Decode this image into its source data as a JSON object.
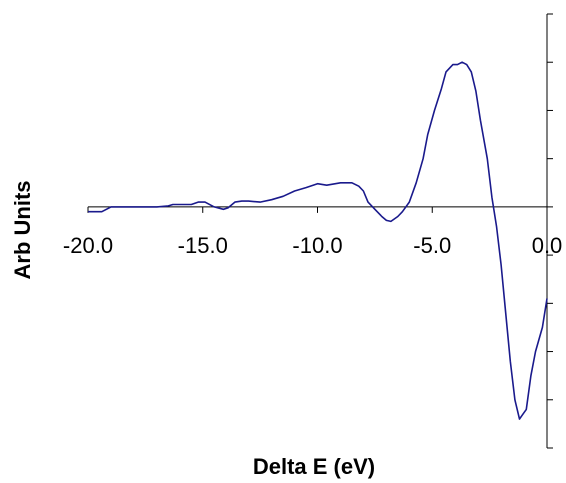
{
  "chart_data": {
    "type": "line",
    "title": "",
    "xlabel": "Delta E (eV)",
    "ylabel": "Arb Units",
    "xlim": [
      -20.0,
      0.0
    ],
    "ylim": [
      -5,
      4
    ],
    "x_ticks": [
      "-20.0",
      "-15.0",
      "-10.0",
      "-5.0",
      "0.0"
    ],
    "x_tick_values": [
      -20,
      -15,
      -10,
      -5,
      0
    ],
    "y_tick_values": [
      -5,
      -4,
      -3,
      -2,
      -1,
      0,
      1,
      2,
      3,
      4
    ],
    "grid": false,
    "legend": "none",
    "colors": {
      "line": "#1a1a8c",
      "axis": "#000000"
    },
    "series": [
      {
        "x": [
          -20.0,
          -19.4,
          -19.0,
          -18.8,
          -18.5,
          -18.0,
          -17.0,
          -16.5,
          -16.3,
          -16.0,
          -15.5,
          -15.2,
          -14.9,
          -14.5,
          -14.1,
          -13.9,
          -13.6,
          -13.3,
          -13.0,
          -12.5,
          -12.0,
          -11.5,
          -11.0,
          -10.5,
          -10.0,
          -9.6,
          -9.0,
          -8.5,
          -8.2,
          -8.0,
          -7.8,
          -7.5,
          -7.2,
          -7.0,
          -6.8,
          -6.5,
          -6.3,
          -6.0,
          -5.7,
          -5.4,
          -5.2,
          -4.9,
          -4.6,
          -4.4,
          -4.1,
          -3.9,
          -3.7,
          -3.5,
          -3.3,
          -3.1,
          -2.9,
          -2.6,
          -2.4,
          -2.2,
          -2.0,
          -1.8,
          -1.6,
          -1.4,
          -1.2,
          -1.05,
          -0.9,
          -0.7,
          -0.5,
          -0.2,
          0.0
        ],
        "y": [
          -0.1,
          -0.1,
          0.0,
          0.0,
          0.0,
          0.0,
          0.0,
          0.02,
          0.05,
          0.05,
          0.05,
          0.1,
          0.1,
          0.0,
          -0.05,
          -0.02,
          0.1,
          0.12,
          0.12,
          0.1,
          0.15,
          0.22,
          0.33,
          0.4,
          0.48,
          0.45,
          0.5,
          0.5,
          0.43,
          0.33,
          0.1,
          -0.05,
          -0.2,
          -0.28,
          -0.3,
          -0.2,
          -0.1,
          0.1,
          0.5,
          1.0,
          1.5,
          2.0,
          2.45,
          2.8,
          2.95,
          2.95,
          3.0,
          2.95,
          2.8,
          2.4,
          1.8,
          1.0,
          0.2,
          -0.4,
          -1.2,
          -2.2,
          -3.2,
          -4.0,
          -4.4,
          -4.3,
          -4.2,
          -3.5,
          -3.0,
          -2.5,
          -1.9
        ]
      }
    ]
  }
}
